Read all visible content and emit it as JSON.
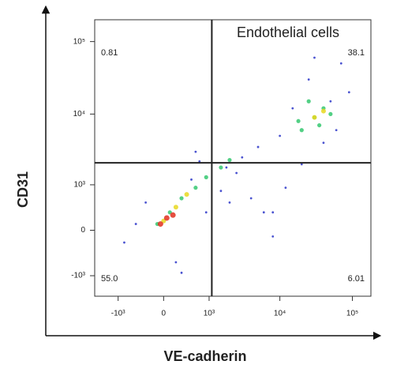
{
  "chart_data": {
    "type": "scatter",
    "title": "Endothelial cells",
    "x_label": "VE-cadherin",
    "y_label": "CD31",
    "scale": "asinh",
    "cofactor": 500,
    "xlim": [
      -2200,
      180000
    ],
    "ylim": [
      -2000,
      200000
    ],
    "xticks": [
      {
        "value": -1000,
        "label": "-10³"
      },
      0,
      {
        "value": 1000,
        "label": "10³"
      },
      {
        "value": 10000,
        "label": "10⁴"
      },
      {
        "value": 100000,
        "label": "10⁵"
      }
    ],
    "yticks": [
      {
        "value": -1000,
        "label": "-10³"
      },
      0,
      {
        "value": 1000,
        "label": "10³"
      },
      {
        "value": 10000,
        "label": "10⁴"
      },
      {
        "value": 100000,
        "label": "10⁵"
      }
    ],
    "gate_x": 1100,
    "gate_y": 2100,
    "quadrants": [
      {
        "position": "upper-left",
        "value": 0.81
      },
      {
        "position": "upper-right",
        "value": 38.1
      },
      {
        "position": "lower-left",
        "value": 55,
        "value_label": "55.0"
      },
      {
        "position": "lower-right",
        "value": 6.01
      }
    ],
    "series": [
      {
        "color": "#2a35c8",
        "size": 1.4,
        "x": [
          -800,
          -300,
          200,
          500,
          900,
          1500,
          2500,
          4000,
          6000,
          8000,
          12000,
          3000,
          5000,
          1800,
          700,
          -500,
          300,
          20000,
          40000,
          60000,
          90000,
          15000,
          25000,
          70000,
          10000,
          30000,
          50000,
          8000,
          2000,
          600
        ],
        "y": [
          -200,
          500,
          -600,
          1200,
          300,
          800,
          1500,
          600,
          300,
          -100,
          900,
          2500,
          3500,
          1800,
          2200,
          100,
          -900,
          2000,
          4000,
          6000,
          20000,
          12000,
          30000,
          50000,
          5000,
          60000,
          15000,
          300,
          500,
          3000
        ]
      },
      {
        "color": "#35c870",
        "size": 2.6,
        "x": [
          -100,
          100,
          300,
          600,
          900,
          1500,
          2000,
          20000,
          30000,
          40000,
          25000,
          50000,
          35000,
          18000
        ],
        "y": [
          100,
          300,
          600,
          900,
          1300,
          1800,
          2300,
          6000,
          9000,
          12000,
          15000,
          10000,
          7000,
          8000
        ]
      },
      {
        "color": "#e8d820",
        "size": 3,
        "x": [
          0,
          200,
          400,
          30000,
          40000
        ],
        "y": [
          150,
          400,
          700,
          9000,
          11000
        ]
      },
      {
        "color": "#e03020",
        "size": 3.5,
        "x": [
          -50,
          50,
          150
        ],
        "y": [
          100,
          200,
          250
        ]
      }
    ]
  }
}
